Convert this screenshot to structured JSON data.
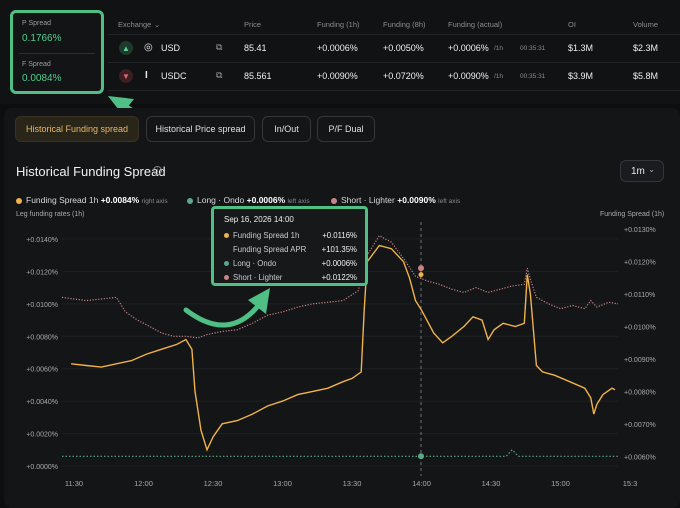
{
  "spreads": {
    "p_label": "P Spread",
    "p_value": "0.1766%",
    "f_label": "F Spread",
    "f_value": "0.0084%"
  },
  "table": {
    "headers": {
      "exchange": "Exchange",
      "price": "Price",
      "funding_1h": "Funding (1h)",
      "funding_8h": "Funding (8h)",
      "funding_actual": "Funding (actual)",
      "oi": "OI",
      "volume": "Volume"
    },
    "rows": [
      {
        "direction_icon": "chevron-up-icon",
        "logo_icon": "ondo-logo-icon",
        "exchange": "USD",
        "price": "85.41",
        "funding_1h": "+0.0006%",
        "funding_8h": "+0.0050%",
        "funding_actual": "+0.0006%",
        "funding_unit": "/1h",
        "countdown": "00:35:31",
        "oi": "$1.3M",
        "volume": "$2.3M"
      },
      {
        "direction_icon": "chevron-down-icon",
        "logo_icon": "lighter-logo-icon",
        "exchange": "USDC",
        "price": "85.561",
        "funding_1h": "+0.0090%",
        "funding_8h": "+0.0720%",
        "funding_actual": "+0.0090%",
        "funding_unit": "/1h",
        "countdown": "00:35:31",
        "oi": "$3.9M",
        "volume": "$5.8M"
      }
    ]
  },
  "tabs": [
    "Historical Funding spread",
    "Historical Price spread",
    "In/Out",
    "P/F Dual"
  ],
  "active_tab": "Historical Funding spread",
  "chart_header": {
    "title": "Historical Funding Spread",
    "range": "1m"
  },
  "legend": {
    "items": [
      {
        "label": "Funding Spread 1h",
        "value": "+0.0084%",
        "note": "right axis",
        "color": "#f0b24a"
      },
      {
        "label": "Long · Ondo",
        "value": "+0.0006%",
        "note": "left axis",
        "color": "#5aa88a"
      },
      {
        "label": "Short · Lighter",
        "value": "+0.0090%",
        "note": "left axis",
        "color": "#c98585"
      }
    ]
  },
  "tooltip": {
    "date": "Sep 16, 2026 14:00",
    "rows": [
      {
        "label": "Funding Spread 1h",
        "value": "+0.0116%",
        "color": "#f0b24a"
      },
      {
        "label": "Funding Spread APR",
        "value": "+101.35%",
        "color": ""
      },
      {
        "label": "Long · Ondo",
        "value": "+0.0006%",
        "color": "#5aa88a"
      },
      {
        "label": "Short · Lighter",
        "value": "+0.0122%",
        "color": "#c98585"
      }
    ]
  },
  "chart_data": {
    "type": "line",
    "left_axis_title": "Leg funding rates (1h)",
    "right_axis_title": "Funding Spread (1h)",
    "left_ticks": [
      "+0.0140%",
      "+0.0120%",
      "+0.0100%",
      "+0.0080%",
      "+0.0060%",
      "+0.0040%",
      "+0.0020%",
      "+0.0000%"
    ],
    "right_ticks": [
      "+0.0130%",
      "+0.0120%",
      "+0.0110%",
      "+0.0100%",
      "+0.0090%",
      "+0.0080%",
      "+0.0070%",
      "+0.0060%"
    ],
    "x_ticks": [
      "11:30",
      "12:00",
      "12:30",
      "13:00",
      "13:30",
      "14:00",
      "14:30",
      "15:00",
      "15:3"
    ],
    "crosshair_x": "14:00",
    "left_ylim": [
      0,
      0.0148
    ],
    "right_ylim": [
      0.0057,
      0.0131
    ],
    "x_range_minutes": [
      -13,
      171
    ],
    "series": [
      {
        "name": "Funding Spread 1h",
        "axis": "right",
        "color": "#f0b24a",
        "points": [
          [
            -10,
            0.00885
          ],
          [
            -5,
            0.0088
          ],
          [
            0,
            0.00875
          ],
          [
            5,
            0.00885
          ],
          [
            10,
            0.00895
          ],
          [
            15,
            0.00915
          ],
          [
            20,
            0.0093
          ],
          [
            25,
            0.00945
          ],
          [
            28,
            0.0096
          ],
          [
            30,
            0.0093
          ],
          [
            31,
            0.008
          ],
          [
            33,
            0.0068
          ],
          [
            35,
            0.0062
          ],
          [
            37,
            0.0066
          ],
          [
            40,
            0.007
          ],
          [
            45,
            0.0071
          ],
          [
            50,
            0.0073
          ],
          [
            55,
            0.00755
          ],
          [
            60,
            0.0077
          ],
          [
            65,
            0.0079
          ],
          [
            70,
            0.008
          ],
          [
            75,
            0.0081
          ],
          [
            80,
            0.0083
          ],
          [
            83,
            0.0084
          ],
          [
            86,
            0.0086
          ],
          [
            87,
            0.0105
          ],
          [
            88,
            0.012
          ],
          [
            92,
            0.0125
          ],
          [
            96,
            0.0124
          ],
          [
            100,
            0.012
          ],
          [
            102,
            0.0115
          ],
          [
            104,
            0.0108
          ],
          [
            106,
            0.0105
          ],
          [
            110,
            0.0098
          ],
          [
            113,
            0.0095
          ],
          [
            116,
            0.0097
          ],
          [
            120,
            0.01
          ],
          [
            123,
            0.0103
          ],
          [
            126,
            0.0102
          ],
          [
            128,
            0.0096
          ],
          [
            130,
            0.0099
          ],
          [
            133,
            0.0101
          ],
          [
            137,
            0.01
          ],
          [
            140,
            0.0101
          ],
          [
            141,
            0.0116
          ],
          [
            142,
            0.011
          ],
          [
            144,
            0.0088
          ],
          [
            146,
            0.0086
          ],
          [
            150,
            0.0085
          ],
          [
            155,
            0.0083
          ],
          [
            160,
            0.0081
          ],
          [
            162,
            0.0078
          ],
          [
            163,
            0.0073
          ],
          [
            164,
            0.0076
          ],
          [
            166,
            0.0079
          ],
          [
            169,
            0.0081
          ],
          [
            170,
            0.00805
          ]
        ]
      },
      {
        "name": "Long · Ondo",
        "axis": "left",
        "color": "#5aa88a",
        "points": [
          [
            -13,
            0.0006
          ],
          [
            134,
            0.0006
          ],
          [
            136,
            0.001
          ],
          [
            138,
            0.0006
          ],
          [
            171,
            0.0006
          ]
        ]
      },
      {
        "name": "Short · Lighter",
        "axis": "left",
        "color": "#c98585",
        "points": [
          [
            -13,
            0.0104
          ],
          [
            -5,
            0.0102
          ],
          [
            0,
            0.0103
          ],
          [
            5,
            0.0104
          ],
          [
            8,
            0.0095
          ],
          [
            12,
            0.009
          ],
          [
            16,
            0.0086
          ],
          [
            20,
            0.0082
          ],
          [
            24,
            0.008
          ],
          [
            28,
            0.008
          ],
          [
            32,
            0.0079
          ],
          [
            35,
            0.0081
          ],
          [
            40,
            0.0083
          ],
          [
            45,
            0.0084
          ],
          [
            50,
            0.0088
          ],
          [
            55,
            0.0093
          ],
          [
            60,
            0.0095
          ],
          [
            65,
            0.0098
          ],
          [
            70,
            0.01
          ],
          [
            75,
            0.0101
          ],
          [
            80,
            0.0102
          ],
          [
            85,
            0.0108
          ],
          [
            88,
            0.013
          ],
          [
            92,
            0.0142
          ],
          [
            96,
            0.0138
          ],
          [
            100,
            0.0128
          ],
          [
            104,
            0.0117
          ],
          [
            108,
            0.0114
          ],
          [
            112,
            0.0112
          ],
          [
            116,
            0.0109
          ],
          [
            120,
            0.0107
          ],
          [
            124,
            0.011
          ],
          [
            128,
            0.0107
          ],
          [
            132,
            0.0109
          ],
          [
            136,
            0.0111
          ],
          [
            140,
            0.0112
          ],
          [
            141,
            0.0122
          ],
          [
            142,
            0.0115
          ],
          [
            144,
            0.0104
          ],
          [
            148,
            0.01
          ],
          [
            152,
            0.0097
          ],
          [
            156,
            0.0099
          ],
          [
            160,
            0.0097
          ],
          [
            162,
            0.0102
          ],
          [
            164,
            0.0098
          ],
          [
            168,
            0.0101
          ],
          [
            171,
            0.01
          ]
        ]
      }
    ]
  }
}
